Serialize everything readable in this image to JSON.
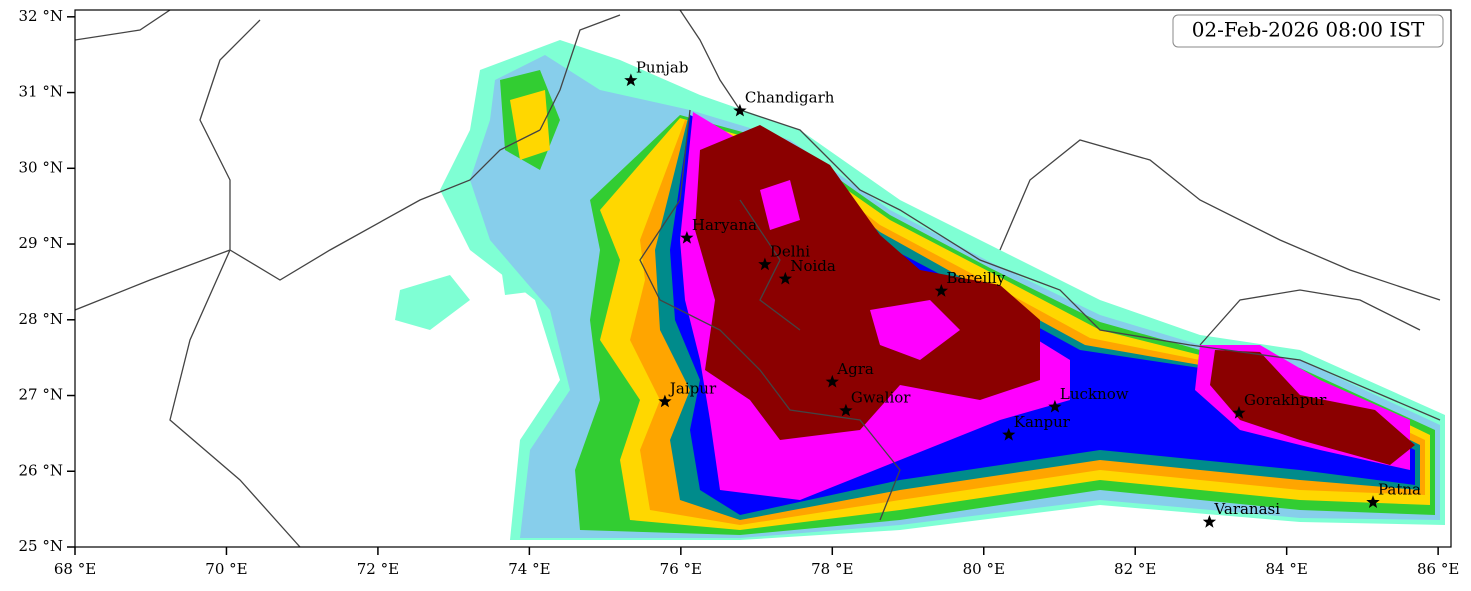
{
  "map": {
    "title": "02-Feb-2026 08:00 IST",
    "xlim": [
      68,
      86.17
    ],
    "ylim": [
      25,
      32.09
    ],
    "xticks": [
      {
        "value": 68,
        "label": "68 °E"
      },
      {
        "value": 70,
        "label": "70 °E"
      },
      {
        "value": 72,
        "label": "72 °E"
      },
      {
        "value": 74,
        "label": "74 °E"
      },
      {
        "value": 76,
        "label": "76 °E"
      },
      {
        "value": 78,
        "label": "78 °E"
      },
      {
        "value": 80,
        "label": "80 °E"
      },
      {
        "value": 82,
        "label": "82 °E"
      },
      {
        "value": 84,
        "label": "84 °E"
      },
      {
        "value": 86,
        "label": "86 °E"
      }
    ],
    "yticks": [
      {
        "value": 25,
        "label": "25 °N"
      },
      {
        "value": 26,
        "label": "26 °N"
      },
      {
        "value": 27,
        "label": "27 °N"
      },
      {
        "value": 28,
        "label": "28 °N"
      },
      {
        "value": 29,
        "label": "29 °N"
      },
      {
        "value": 30,
        "label": "30 °N"
      },
      {
        "value": 31,
        "label": "31 °N"
      },
      {
        "value": 32,
        "label": "32 °N"
      }
    ],
    "cities": [
      {
        "name": "Punjab",
        "lon": 75.34,
        "lat": 31.16
      },
      {
        "name": "Chandigarh",
        "lon": 76.78,
        "lat": 30.76
      },
      {
        "name": "Haryana",
        "lon": 76.08,
        "lat": 29.08
      },
      {
        "name": "Delhi",
        "lon": 77.11,
        "lat": 28.73
      },
      {
        "name": "Noida",
        "lon": 77.38,
        "lat": 28.54
      },
      {
        "name": "Bareilly",
        "lon": 79.44,
        "lat": 28.38
      },
      {
        "name": "Agra",
        "lon": 78.0,
        "lat": 27.18
      },
      {
        "name": "Jaipur",
        "lon": 75.79,
        "lat": 26.92
      },
      {
        "name": "Gwalior",
        "lon": 78.18,
        "lat": 26.8
      },
      {
        "name": "Lucknow",
        "lon": 80.94,
        "lat": 26.85
      },
      {
        "name": "Gorakhpur",
        "lon": 83.37,
        "lat": 26.77
      },
      {
        "name": "Kanpur",
        "lon": 80.33,
        "lat": 26.48
      },
      {
        "name": "Varanasi",
        "lon": 82.98,
        "lat": 25.33
      },
      {
        "name": "Patna",
        "lon": 85.14,
        "lat": 25.59
      }
    ]
  }
}
